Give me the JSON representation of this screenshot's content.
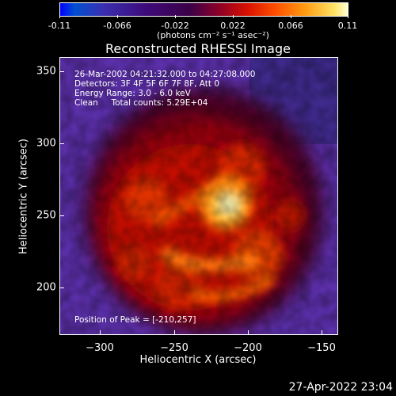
{
  "colorbar": {
    "ticks": [
      "-0.11",
      "-0.066",
      "-0.022",
      "0.022",
      "0.066",
      "0.11"
    ],
    "unit": "(photons cm⁻² s⁻¹ asec⁻²)"
  },
  "title": "Reconstructed RHESSI Image",
  "annotations": {
    "time_range": "26-Mar-2002 04:21:32.000 to 04:27:08.000",
    "detectors": "Detectors: 3F 4F 5F 6F 7F 8F, Att 0",
    "energy": "Energy Range: 3.0 - 6.0 keV",
    "clean": "Clean     Total counts: 5.29E+04",
    "peak": "Position of Peak = [-210,257]"
  },
  "axes": {
    "xlabel": "Heliocentric X (arcsec)",
    "ylabel": "Heliocentric Y (arcsec)",
    "xticks": [
      "−300",
      "−250",
      "−200",
      "−150"
    ],
    "yticks": [
      "350",
      "300",
      "250",
      "200"
    ],
    "xlim": [
      -332,
      -136
    ],
    "ylim": [
      166,
      362
    ]
  },
  "peak_position": [
    -210,
    257
  ],
  "timestamp": "27-Apr-2022 23:04"
}
